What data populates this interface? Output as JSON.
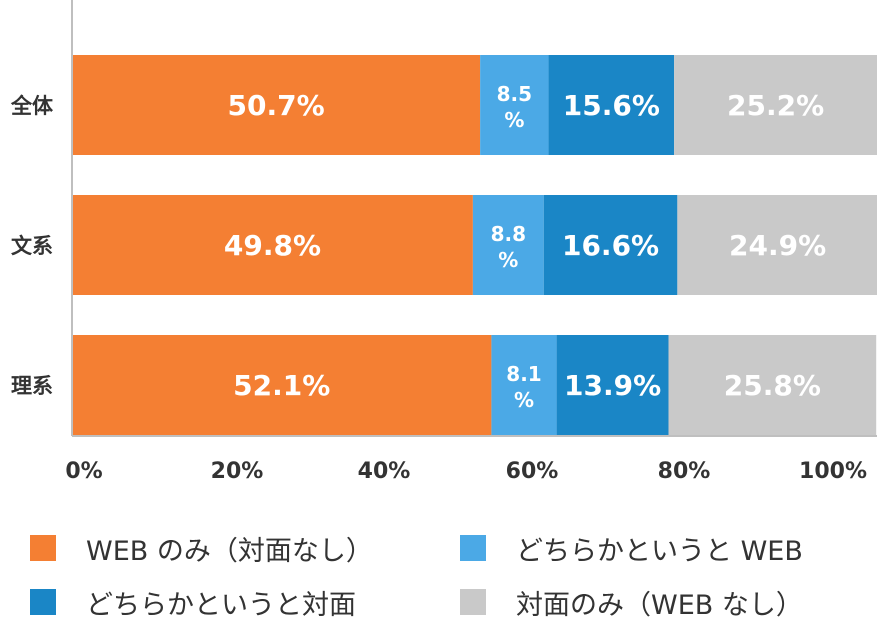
{
  "chart_data": {
    "type": "bar",
    "orientation": "horizontal",
    "stacked": true,
    "categories": [
      "全体",
      "文系",
      "理系"
    ],
    "series": [
      {
        "name": "WEB のみ（対面なし）",
        "color": "#F47F33",
        "values": [
          50.7,
          49.8,
          52.1
        ],
        "labels": [
          "50.7%",
          "49.8%",
          "52.1%"
        ]
      },
      {
        "name": "どちらかというと WEB",
        "color": "#4BA9E6",
        "values": [
          8.5,
          8.8,
          8.1
        ],
        "labels": [
          "8.5\n%",
          "8.8\n%",
          "8.1\n%"
        ]
      },
      {
        "name": "どちらかというと対面",
        "color": "#1A86C6",
        "values": [
          15.6,
          16.6,
          13.9
        ],
        "labels": [
          "15.6%",
          "16.6%",
          "13.9%"
        ]
      },
      {
        "name": "対面のみ（WEB なし）",
        "color": "#C9C9C9",
        "values": [
          25.2,
          24.9,
          25.8
        ],
        "labels": [
          "25.2%",
          "24.9%",
          "25.8%"
        ]
      }
    ],
    "x_ticks": [
      "0%",
      "20%",
      "40%",
      "60%",
      "80%",
      "100%"
    ],
    "xlim": [
      0,
      100
    ],
    "grid": false,
    "legend_position": "bottom"
  },
  "legend": [
    {
      "label": "WEB のみ（対面なし）",
      "color": "#F47F33"
    },
    {
      "label": "どちらかというと WEB",
      "color": "#4BA9E6"
    },
    {
      "label": "どちらかというと対面",
      "color": "#1A86C6"
    },
    {
      "label": "対面のみ（WEB なし）",
      "color": "#C9C9C9"
    }
  ]
}
